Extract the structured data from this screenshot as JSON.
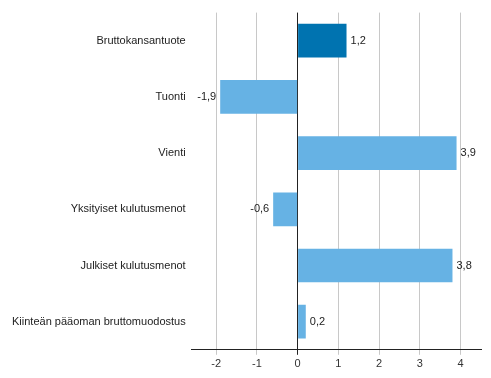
{
  "chart_data": {
    "type": "bar",
    "orientation": "horizontal",
    "categories": [
      "Bruttokansantuote",
      "Tuonti",
      "Vienti",
      "Yksityiset kulutusmenot",
      "Julkiset kulutusmenot",
      "Kiinteän pääoman bruttomuodostus"
    ],
    "values": [
      1.2,
      -1.9,
      3.9,
      -0.6,
      3.8,
      0.2
    ],
    "value_labels": [
      "1,2",
      "-1,9",
      "3,9",
      "-0,6",
      "3,8",
      "0,2"
    ],
    "colors": [
      "#0073b0",
      "#66b2e4",
      "#66b2e4",
      "#66b2e4",
      "#66b2e4",
      "#66b2e4"
    ],
    "xlim": [
      -2.6,
      4.5
    ],
    "xticks": [
      -2,
      -1,
      0,
      1,
      2,
      3,
      4
    ],
    "grid": true,
    "data_labels": true
  }
}
